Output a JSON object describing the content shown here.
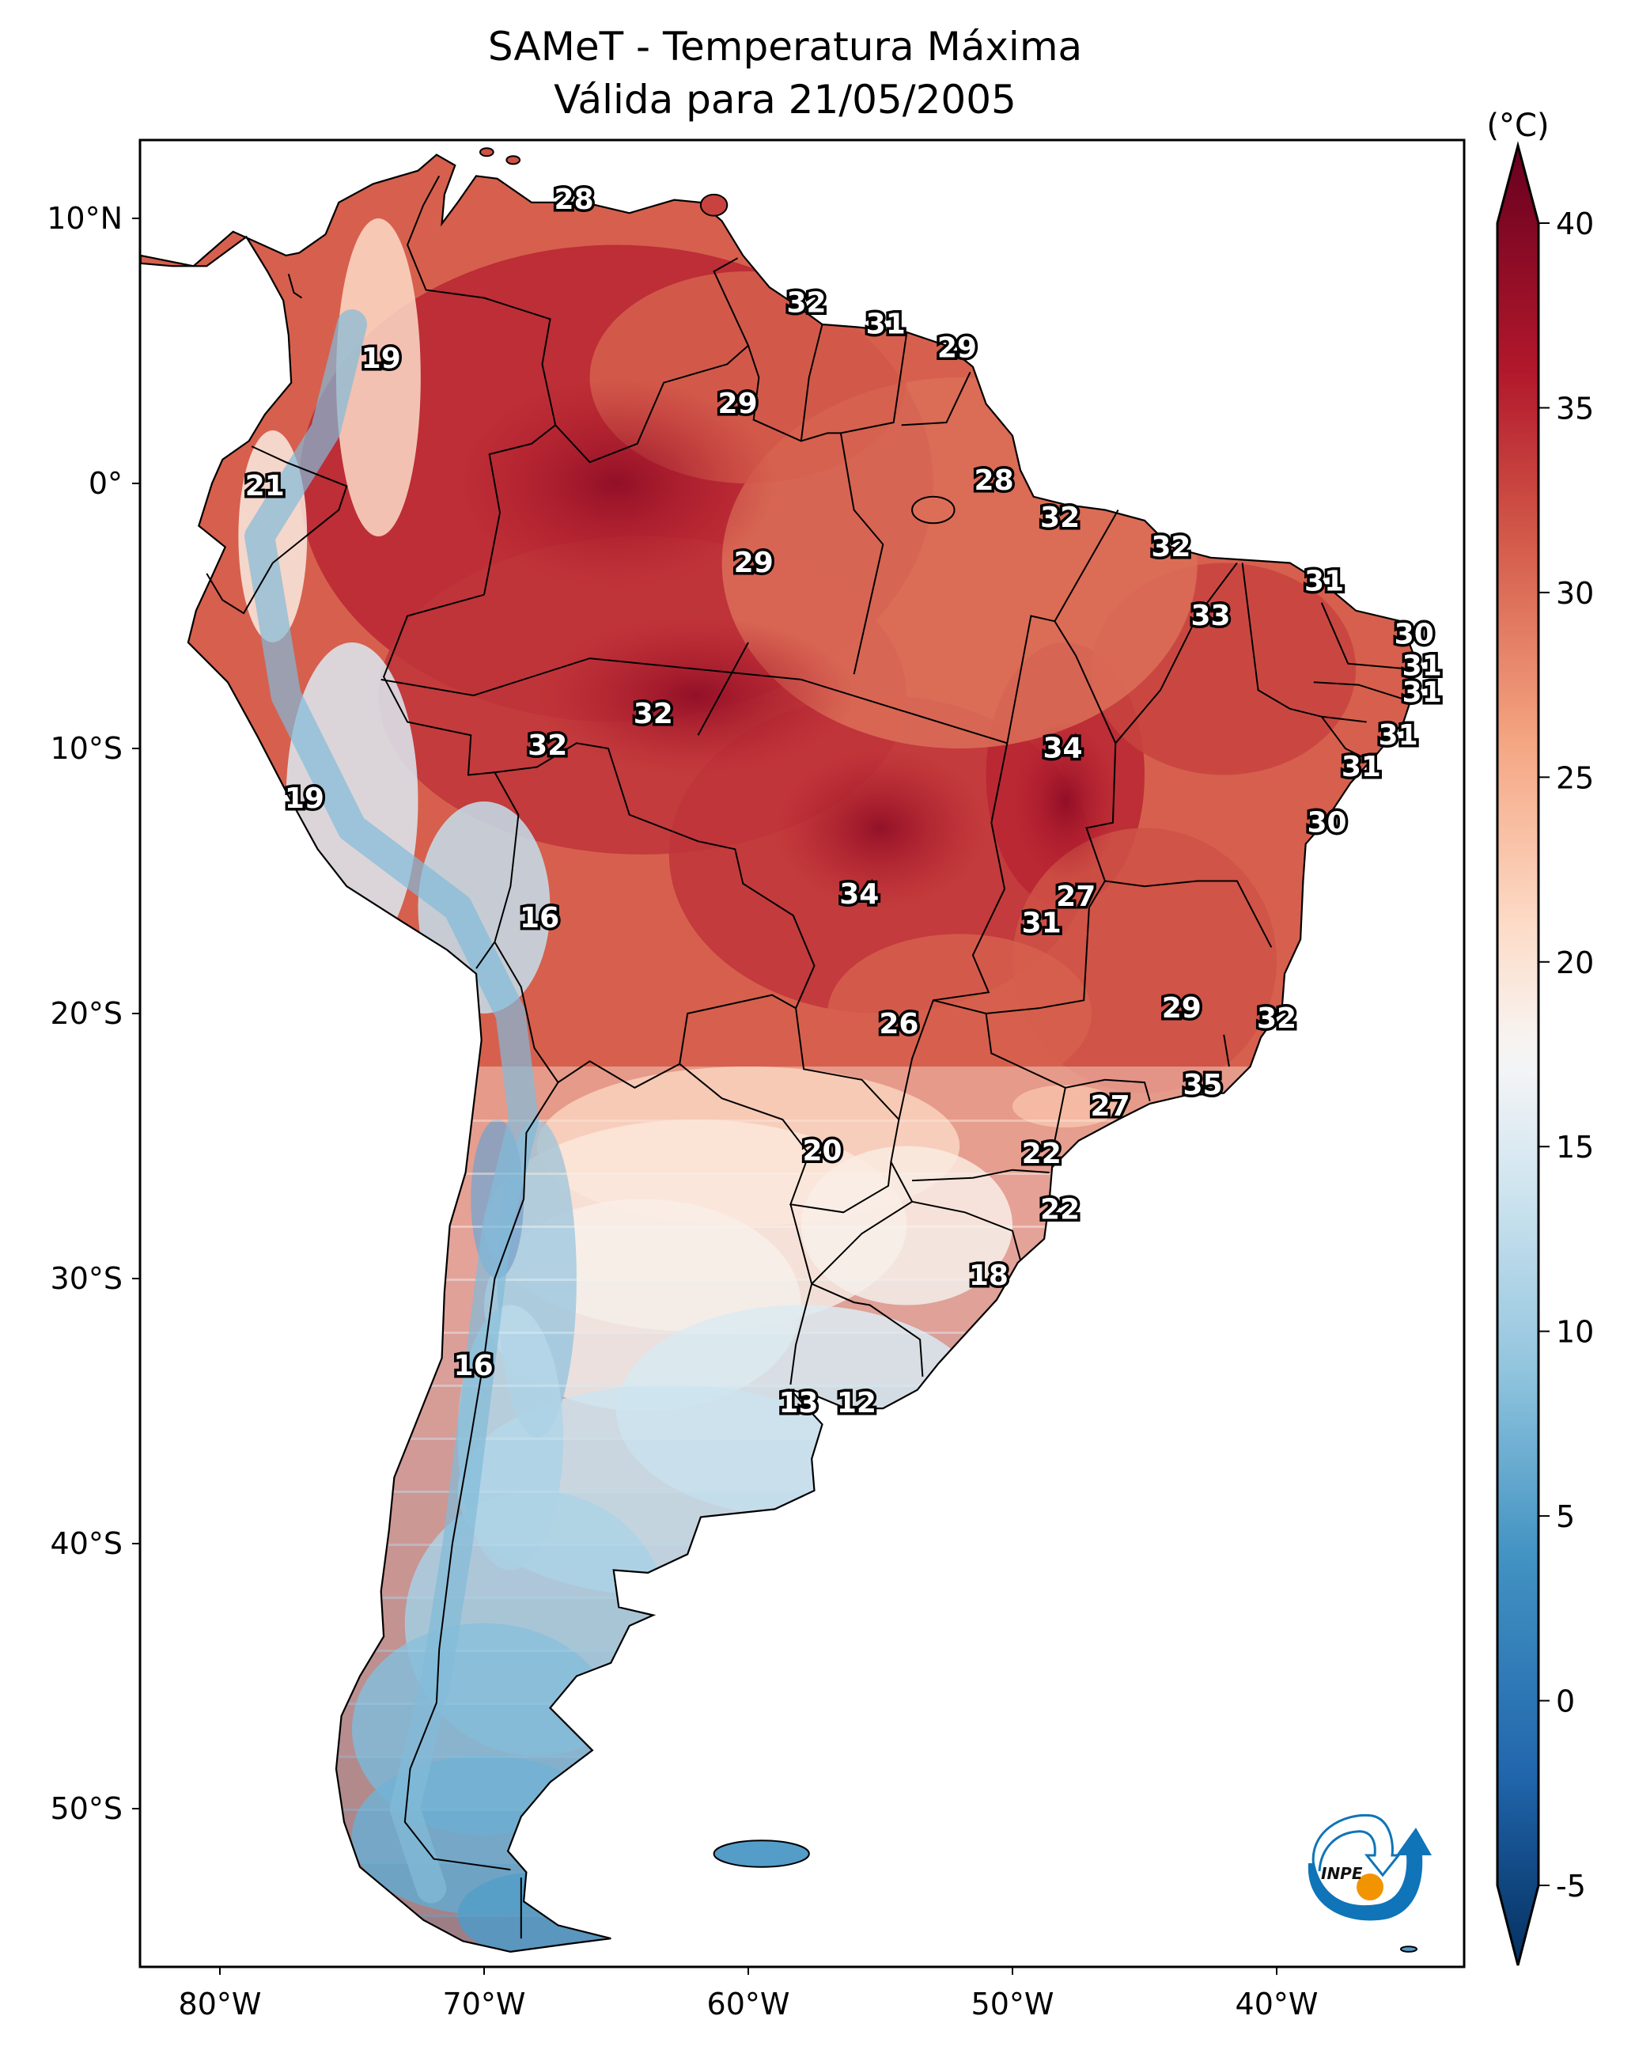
{
  "title": {
    "line1": "SAMeT - Temperatura Máxima",
    "line2": "Válida para 21/05/2005"
  },
  "chart_data": {
    "type": "heatmap",
    "title": "SAMeT - Temperatura Máxima",
    "subtitle": "Válida para 21/05/2005",
    "region": "South America",
    "xlabel": "",
    "ylabel": "",
    "lon_range": [
      -83,
      -33
    ],
    "lat_range": [
      -56,
      13
    ],
    "x_ticks": [
      {
        "value": -80,
        "label": "80°W"
      },
      {
        "value": -70,
        "label": "70°W"
      },
      {
        "value": -60,
        "label": "60°W"
      },
      {
        "value": -50,
        "label": "50°W"
      },
      {
        "value": -40,
        "label": "40°W"
      }
    ],
    "y_ticks": [
      {
        "value": 10,
        "label": "10°N"
      },
      {
        "value": 0,
        "label": "0°"
      },
      {
        "value": -10,
        "label": "10°S"
      },
      {
        "value": -20,
        "label": "20°S"
      },
      {
        "value": -30,
        "label": "30°S"
      },
      {
        "value": -40,
        "label": "40°S"
      },
      {
        "value": -50,
        "label": "50°S"
      }
    ],
    "colorbar": {
      "unit": "(°C)",
      "range": [
        -5,
        40
      ],
      "extend": "both",
      "colormap": "RdBu_r",
      "ticks": [
        {
          "value": 40,
          "label": "40"
        },
        {
          "value": 35,
          "label": "35"
        },
        {
          "value": 30,
          "label": "30"
        },
        {
          "value": 25,
          "label": "25"
        },
        {
          "value": 20,
          "label": "20"
        },
        {
          "value": 15,
          "label": "15"
        },
        {
          "value": 10,
          "label": "10"
        },
        {
          "value": 5,
          "label": "5"
        },
        {
          "value": 0,
          "label": "0"
        },
        {
          "value": -5,
          "label": "-5"
        }
      ],
      "stops": [
        {
          "value": -7,
          "color": "#053061"
        },
        {
          "value": -2,
          "color": "#2166ac"
        },
        {
          "value": 4,
          "color": "#4393c3"
        },
        {
          "value": 9,
          "color": "#92c5de"
        },
        {
          "value": 14,
          "color": "#d1e5f0"
        },
        {
          "value": 17.5,
          "color": "#f7f7f7"
        },
        {
          "value": 21,
          "color": "#fddbc7"
        },
        {
          "value": 26,
          "color": "#f4a582"
        },
        {
          "value": 31,
          "color": "#d6604d"
        },
        {
          "value": 36,
          "color": "#b2182b"
        },
        {
          "value": 42,
          "color": "#67001f"
        }
      ]
    },
    "point_labels": [
      {
        "lon": -66.6,
        "lat": 10.7,
        "value": 28
      },
      {
        "lon": -73.9,
        "lat": 4.7,
        "value": 19
      },
      {
        "lon": -57.8,
        "lat": 6.8,
        "value": 32
      },
      {
        "lon": -54.8,
        "lat": 6.0,
        "value": 31
      },
      {
        "lon": -52.1,
        "lat": 5.1,
        "value": 29
      },
      {
        "lon": -60.4,
        "lat": 3.0,
        "value": 29
      },
      {
        "lon": -50.7,
        "lat": 0.1,
        "value": 28
      },
      {
        "lon": -59.8,
        "lat": -3.0,
        "value": 29
      },
      {
        "lon": -78.3,
        "lat": -0.1,
        "value": 21
      },
      {
        "lon": -76.8,
        "lat": -11.9,
        "value": 19
      },
      {
        "lon": -67.6,
        "lat": -9.9,
        "value": 32
      },
      {
        "lon": -63.6,
        "lat": -8.7,
        "value": 32
      },
      {
        "lon": -67.9,
        "lat": -16.4,
        "value": 16
      },
      {
        "lon": -48.2,
        "lat": -1.3,
        "value": 32
      },
      {
        "lon": -44.0,
        "lat": -2.4,
        "value": 32
      },
      {
        "lon": -38.2,
        "lat": -3.7,
        "value": 31
      },
      {
        "lon": -42.5,
        "lat": -5.0,
        "value": 33
      },
      {
        "lon": -34.8,
        "lat": -5.7,
        "value": 30
      },
      {
        "lon": -34.5,
        "lat": -6.9,
        "value": 31
      },
      {
        "lon": -34.5,
        "lat": -7.9,
        "value": 31
      },
      {
        "lon": -35.4,
        "lat": -9.5,
        "value": 31
      },
      {
        "lon": -36.8,
        "lat": -10.7,
        "value": 31
      },
      {
        "lon": -48.1,
        "lat": -10.0,
        "value": 34
      },
      {
        "lon": -38.1,
        "lat": -12.8,
        "value": 30
      },
      {
        "lon": -55.8,
        "lat": -15.5,
        "value": 34
      },
      {
        "lon": -47.6,
        "lat": -15.6,
        "value": 27
      },
      {
        "lon": -48.9,
        "lat": -16.6,
        "value": 31
      },
      {
        "lon": -54.3,
        "lat": -20.4,
        "value": 26
      },
      {
        "lon": -43.6,
        "lat": -19.8,
        "value": 29
      },
      {
        "lon": -40.0,
        "lat": -20.2,
        "value": 32
      },
      {
        "lon": -42.8,
        "lat": -22.7,
        "value": 35
      },
      {
        "lon": -46.3,
        "lat": -23.5,
        "value": 27
      },
      {
        "lon": -57.2,
        "lat": -25.2,
        "value": 20
      },
      {
        "lon": -48.9,
        "lat": -25.3,
        "value": 22
      },
      {
        "lon": -48.2,
        "lat": -27.4,
        "value": 22
      },
      {
        "lon": -50.9,
        "lat": -29.9,
        "value": 18
      },
      {
        "lon": -70.4,
        "lat": -33.3,
        "value": 16
      },
      {
        "lon": -58.1,
        "lat": -34.7,
        "value": 13
      },
      {
        "lon": -55.9,
        "lat": -34.7,
        "value": 12
      }
    ]
  },
  "logo": {
    "text": "INPE",
    "colors": {
      "swoosh": "#0f74b8",
      "sun": "#f29400",
      "text": "#111111"
    }
  }
}
